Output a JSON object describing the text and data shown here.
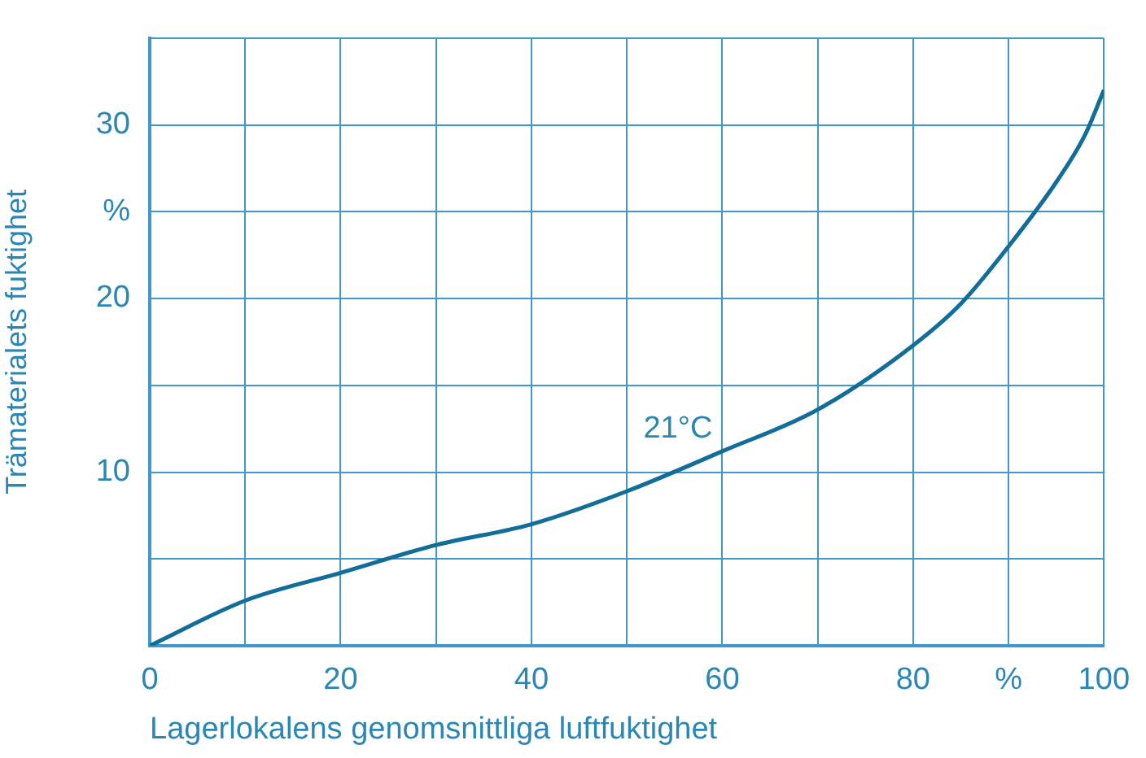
{
  "chart_data": {
    "type": "line",
    "xlabel": "Lagerlokalens genomsnittliga luftfuktighet",
    "ylabel": "Trämaterialets fuktighet",
    "x": [
      0,
      10,
      20,
      30,
      40,
      50,
      60,
      70,
      80,
      85,
      90,
      95,
      98,
      100
    ],
    "series": [
      {
        "name": "21°C",
        "color": "#136d99",
        "values": [
          0,
          2.6,
          4.2,
          5.8,
          7,
          8.9,
          11.2,
          13.6,
          17.3,
          19.7,
          23,
          26.7,
          29.4,
          32
        ]
      }
    ],
    "xlim": [
      0,
      100
    ],
    "ylim": [
      0,
      35
    ],
    "xticks": [
      0,
      {
        "value": 10,
        "label": null
      },
      20,
      {
        "value": 30,
        "label": null
      },
      40,
      {
        "value": 50,
        "label": null
      },
      60,
      {
        "value": 70,
        "label": null
      },
      80,
      {
        "value": 90,
        "label": "%"
      },
      100
    ],
    "yticks": [
      {
        "value": 0,
        "label": null
      },
      {
        "value": 5,
        "label": null
      },
      10,
      {
        "value": 15,
        "label": null
      },
      20,
      {
        "value": 25,
        "label": "%"
      },
      30,
      {
        "value": 35,
        "label": null
      }
    ],
    "grid": true,
    "legend": false,
    "marker": "none",
    "line_style": "solid"
  }
}
